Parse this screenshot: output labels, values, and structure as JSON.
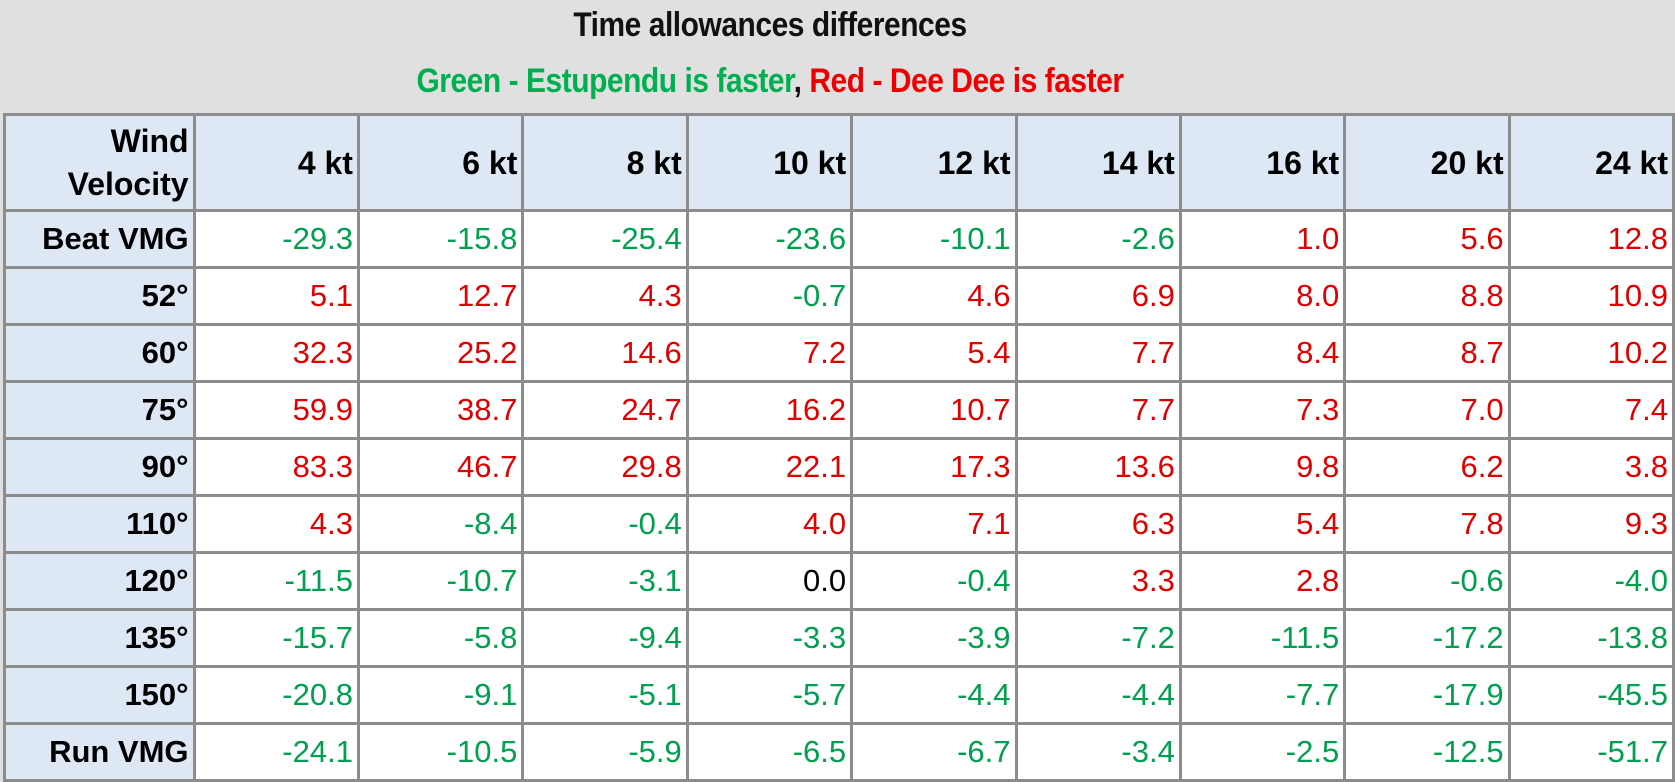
{
  "title": "Time allowances differences",
  "legend": {
    "green_label": "Green - Estupendu is faster",
    "separator": ",",
    "red_label": "Red - Dee Dee is faster",
    "green_color": "#00b050",
    "red_color": "#ee0000"
  },
  "table": {
    "corner_line1": "Wind",
    "corner_line2": "Velocity",
    "columns": [
      "4 kt",
      "6 kt",
      "8 kt",
      "10 kt",
      "12 kt",
      "14 kt",
      "16 kt",
      "20 kt",
      "24 kt"
    ],
    "rows": [
      {
        "label": "Beat VMG",
        "values": [
          "-29.3",
          "-15.8",
          "-25.4",
          "-23.6",
          "-10.1",
          "-2.6",
          "1.0",
          "5.6",
          "12.8"
        ]
      },
      {
        "label": "52°",
        "values": [
          "5.1",
          "12.7",
          "4.3",
          "-0.7",
          "4.6",
          "6.9",
          "8.0",
          "8.8",
          "10.9"
        ]
      },
      {
        "label": "60°",
        "values": [
          "32.3",
          "25.2",
          "14.6",
          "7.2",
          "5.4",
          "7.7",
          "8.4",
          "8.7",
          "10.2"
        ]
      },
      {
        "label": "75°",
        "values": [
          "59.9",
          "38.7",
          "24.7",
          "16.2",
          "10.7",
          "7.7",
          "7.3",
          "7.0",
          "7.4"
        ]
      },
      {
        "label": "90°",
        "values": [
          "83.3",
          "46.7",
          "29.8",
          "22.1",
          "17.3",
          "13.6",
          "9.8",
          "6.2",
          "3.8"
        ]
      },
      {
        "label": "110°",
        "values": [
          "4.3",
          "-8.4",
          "-0.4",
          "4.0",
          "7.1",
          "6.3",
          "5.4",
          "7.8",
          "9.3"
        ]
      },
      {
        "label": "120°",
        "values": [
          "-11.5",
          "-10.7",
          "-3.1",
          "0.0",
          "-0.4",
          "3.3",
          "2.8",
          "-0.6",
          "-4.0"
        ]
      },
      {
        "label": "135°",
        "values": [
          "-15.7",
          "-5.8",
          "-9.4",
          "-3.3",
          "-3.9",
          "-7.2",
          "-11.5",
          "-17.2",
          "-13.8"
        ]
      },
      {
        "label": "150°",
        "values": [
          "-20.8",
          "-9.1",
          "-5.1",
          "-5.7",
          "-4.4",
          "-4.4",
          "-7.7",
          "-17.9",
          "-45.5"
        ]
      },
      {
        "label": "Run VMG",
        "values": [
          "-24.1",
          "-10.5",
          "-5.9",
          "-6.5",
          "-6.7",
          "-3.4",
          "-2.5",
          "-12.5",
          "-51.7"
        ]
      }
    ]
  },
  "chart_data": {
    "type": "table",
    "title": "Time allowances differences",
    "subtitle": "Green - Estupendu is faster, Red - Dee Dee is faster",
    "xlabel": "Wind Velocity",
    "categories": [
      "4 kt",
      "6 kt",
      "8 kt",
      "10 kt",
      "12 kt",
      "14 kt",
      "16 kt",
      "20 kt",
      "24 kt"
    ],
    "series": [
      {
        "name": "Beat VMG",
        "values": [
          -29.3,
          -15.8,
          -25.4,
          -23.6,
          -10.1,
          -2.6,
          1.0,
          5.6,
          12.8
        ]
      },
      {
        "name": "52°",
        "values": [
          5.1,
          12.7,
          4.3,
          -0.7,
          4.6,
          6.9,
          8.0,
          8.8,
          10.9
        ]
      },
      {
        "name": "60°",
        "values": [
          32.3,
          25.2,
          14.6,
          7.2,
          5.4,
          7.7,
          8.4,
          8.7,
          10.2
        ]
      },
      {
        "name": "75°",
        "values": [
          59.9,
          38.7,
          24.7,
          16.2,
          10.7,
          7.7,
          7.3,
          7.0,
          7.4
        ]
      },
      {
        "name": "90°",
        "values": [
          83.3,
          46.7,
          29.8,
          22.1,
          17.3,
          13.6,
          9.8,
          6.2,
          3.8
        ]
      },
      {
        "name": "110°",
        "values": [
          4.3,
          -8.4,
          -0.4,
          4.0,
          7.1,
          6.3,
          5.4,
          7.8,
          9.3
        ]
      },
      {
        "name": "120°",
        "values": [
          -11.5,
          -10.7,
          -3.1,
          0.0,
          -0.4,
          3.3,
          2.8,
          -0.6,
          -4.0
        ]
      },
      {
        "name": "135°",
        "values": [
          -15.7,
          -5.8,
          -9.4,
          -3.3,
          -3.9,
          -7.2,
          -11.5,
          -17.2,
          -13.8
        ]
      },
      {
        "name": "150°",
        "values": [
          -20.8,
          -9.1,
          -5.1,
          -5.7,
          -4.4,
          -4.4,
          -7.7,
          -17.9,
          -45.5
        ]
      },
      {
        "name": "Run VMG",
        "values": [
          -24.1,
          -10.5,
          -5.9,
          -6.5,
          -6.7,
          -3.4,
          -2.5,
          -12.5,
          -51.7
        ]
      }
    ],
    "color_rule": {
      "negative": "green (Estupendu faster)",
      "positive": "red (Dee Dee faster)",
      "zero": "black"
    }
  }
}
